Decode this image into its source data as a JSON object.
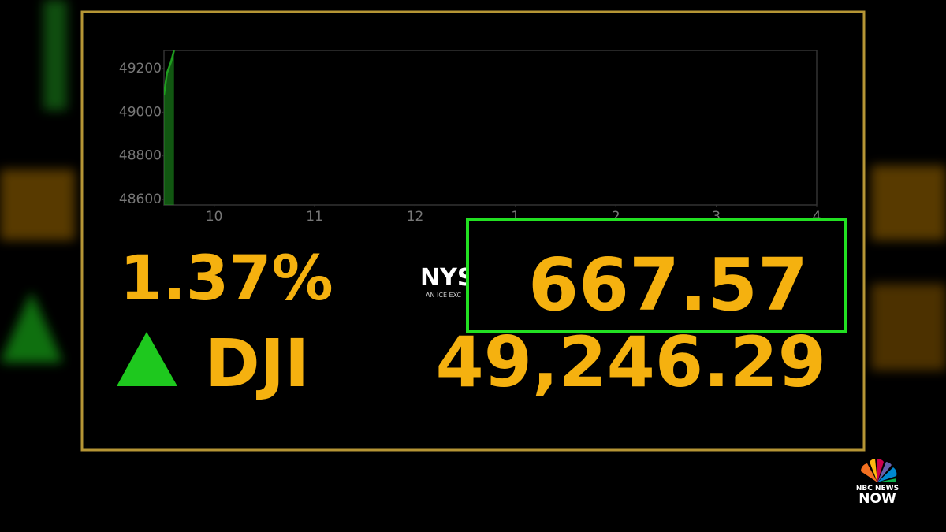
{
  "chart_data": {
    "type": "area",
    "x": [
      9.5,
      9.53,
      9.57,
      9.6
    ],
    "values": [
      49080,
      49180,
      49230,
      49283
    ],
    "color": "#1f9e1f",
    "xlim": [
      9.5,
      16
    ],
    "ylim": [
      48575,
      49283
    ],
    "xticks": [
      10,
      11,
      12,
      {
        "value": 13,
        "label": "1"
      },
      {
        "value": 14,
        "label": "2"
      },
      {
        "value": 15,
        "label": "3"
      },
      {
        "value": 16,
        "label": "4"
      }
    ],
    "yticks": [
      48600,
      48800,
      49000,
      49200
    ]
  },
  "ticker": {
    "percent": "1.37%",
    "symbol": "DJI",
    "points": "667.57",
    "index_value": "49,246.29",
    "exchange": "NYS",
    "exchange_tagline": "AN ICE EXC"
  },
  "branding": {
    "line1": "NBC NEWS",
    "line2": "NOW"
  }
}
